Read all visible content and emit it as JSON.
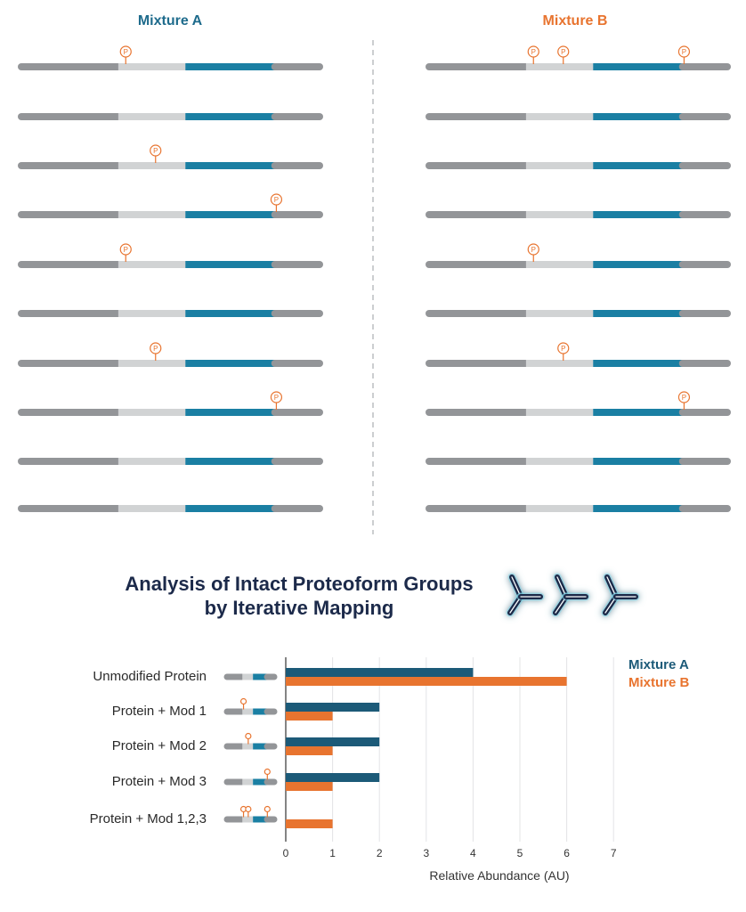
{
  "header": {
    "mixture_a": "Mixture A",
    "mixture_b": "Mixture B"
  },
  "colors": {
    "mixture_a": "#1e6b8c",
    "mixture_b": "#e8742f",
    "chart_a": "#1c5a78",
    "chart_b": "#e8742f",
    "seg_dark": "#939598",
    "seg_light": "#d1d3d4",
    "seg_blue": "#1a7fa3",
    "title": "#1c2a4a"
  },
  "icons": [
    "antibody-icon",
    "antibody-icon",
    "antibody-icon"
  ],
  "phospho_marker": "P",
  "mixture_a_proteins": [
    {
      "mods": [
        1
      ]
    },
    {
      "mods": []
    },
    {
      "mods": [
        2
      ]
    },
    {
      "mods": [
        3
      ]
    },
    {
      "mods": [
        1
      ]
    },
    {
      "mods": []
    },
    {
      "mods": [
        2
      ]
    },
    {
      "mods": [
        3
      ]
    },
    {
      "mods": []
    },
    {
      "mods": []
    }
  ],
  "mixture_b_proteins": [
    {
      "mods": [
        1,
        2,
        3
      ]
    },
    {
      "mods": []
    },
    {
      "mods": []
    },
    {
      "mods": []
    },
    {
      "mods": [
        1
      ]
    },
    {
      "mods": []
    },
    {
      "mods": [
        2
      ]
    },
    {
      "mods": [
        3
      ]
    },
    {
      "mods": []
    },
    {
      "mods": []
    }
  ],
  "title": {
    "line1": "Analysis of Intact Proteoform Groups",
    "line2": "by Iterative Mapping"
  },
  "chart_data": {
    "type": "bar",
    "orientation": "horizontal",
    "categories": [
      "Unmodified Protein",
      "Protein + Mod 1",
      "Protein + Mod 2",
      "Protein + Mod 3",
      "Protein + Mod 1,2,3"
    ],
    "category_mods": [
      [],
      [
        1
      ],
      [
        2
      ],
      [
        3
      ],
      [
        1,
        2,
        3
      ]
    ],
    "series": [
      {
        "name": "Mixture A",
        "values": [
          4,
          2,
          2,
          2,
          0
        ]
      },
      {
        "name": "Mixture B",
        "values": [
          6,
          1,
          1,
          1,
          1
        ]
      }
    ],
    "xlabel": "Relative Abundance (AU)",
    "xlim": [
      0,
      7
    ],
    "xticks": [
      "0",
      "1",
      "2",
      "3",
      "4",
      "5",
      "6",
      "7"
    ],
    "grid": true,
    "legend": "top-right"
  }
}
